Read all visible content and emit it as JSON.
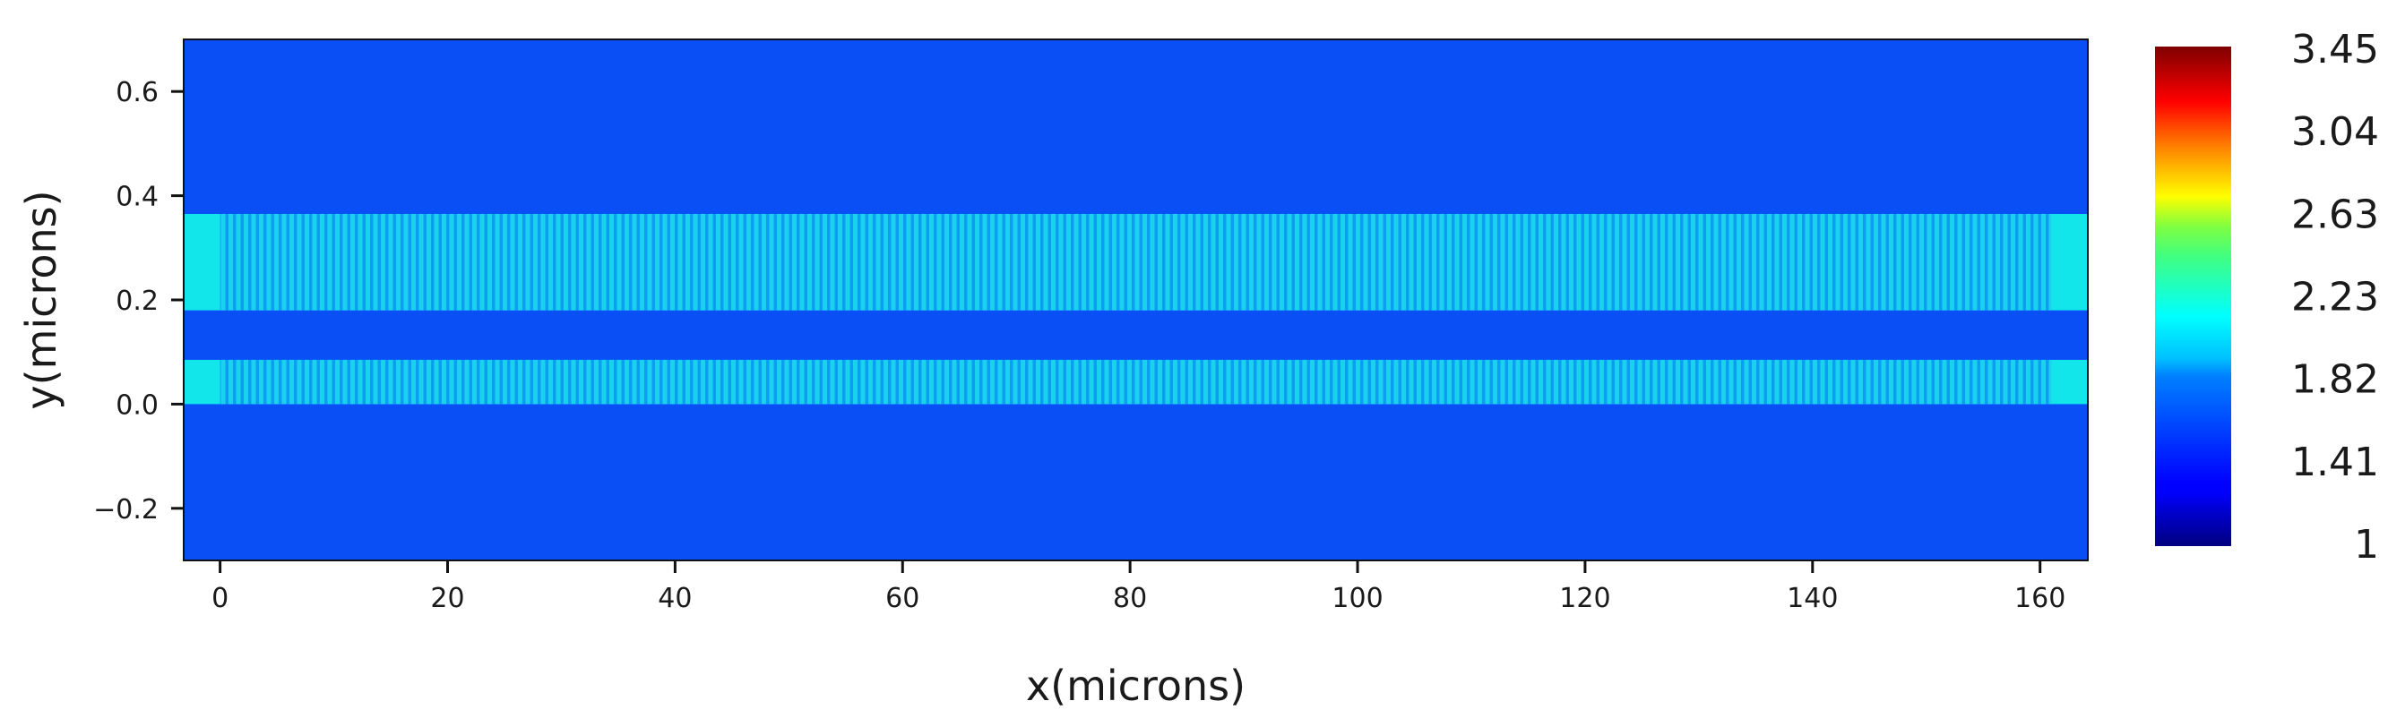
{
  "chart_data": {
    "type": "heatmap",
    "xlabel": "x(microns)",
    "ylabel": "y(microns)",
    "xlim": [
      -3.2,
      164.2
    ],
    "ylim": [
      -0.3,
      0.7
    ],
    "x_ticks": [
      0,
      20,
      40,
      60,
      80,
      100,
      120,
      140,
      160
    ],
    "x_tick_labels": [
      "0",
      "20",
      "40",
      "60",
      "80",
      "100",
      "120",
      "140",
      "160"
    ],
    "y_ticks": [
      -0.2,
      0.0,
      0.2,
      0.4,
      0.6
    ],
    "y_tick_labels": [
      "−0.2",
      "0.0",
      "0.2",
      "0.4",
      "0.6"
    ],
    "colorbar": {
      "min": 1,
      "max": 3.45,
      "tick_values": [
        1,
        1.41,
        1.82,
        2.23,
        2.63,
        3.04,
        3.45
      ],
      "tick_labels": [
        "1",
        "1.41",
        "1.82",
        "2.23",
        "2.63",
        "3.04",
        "3.45"
      ],
      "colormap": "jet"
    },
    "background_value": 1.45,
    "waveguides": [
      {
        "x_range": [
          -3.2,
          164.2
        ],
        "y_range": [
          0.18,
          0.365
        ],
        "solid_value": 1.9,
        "grating_x": [
          0,
          161
        ],
        "grating_period": 0.5,
        "grating_values": [
          1.72,
          1.9
        ]
      },
      {
        "x_range": [
          -3.2,
          164.2
        ],
        "y_range": [
          0.0,
          0.085
        ],
        "solid_value": 1.9,
        "grating_x": [
          0,
          161
        ],
        "grating_period": 0.5,
        "grating_values": [
          1.72,
          1.9
        ]
      }
    ],
    "colors": {
      "background": "#0a4ef6",
      "waveguide_solid": "#12e6ea",
      "grating_light": "#1bd2ee",
      "grating_dark": "#0b9ef2"
    }
  }
}
